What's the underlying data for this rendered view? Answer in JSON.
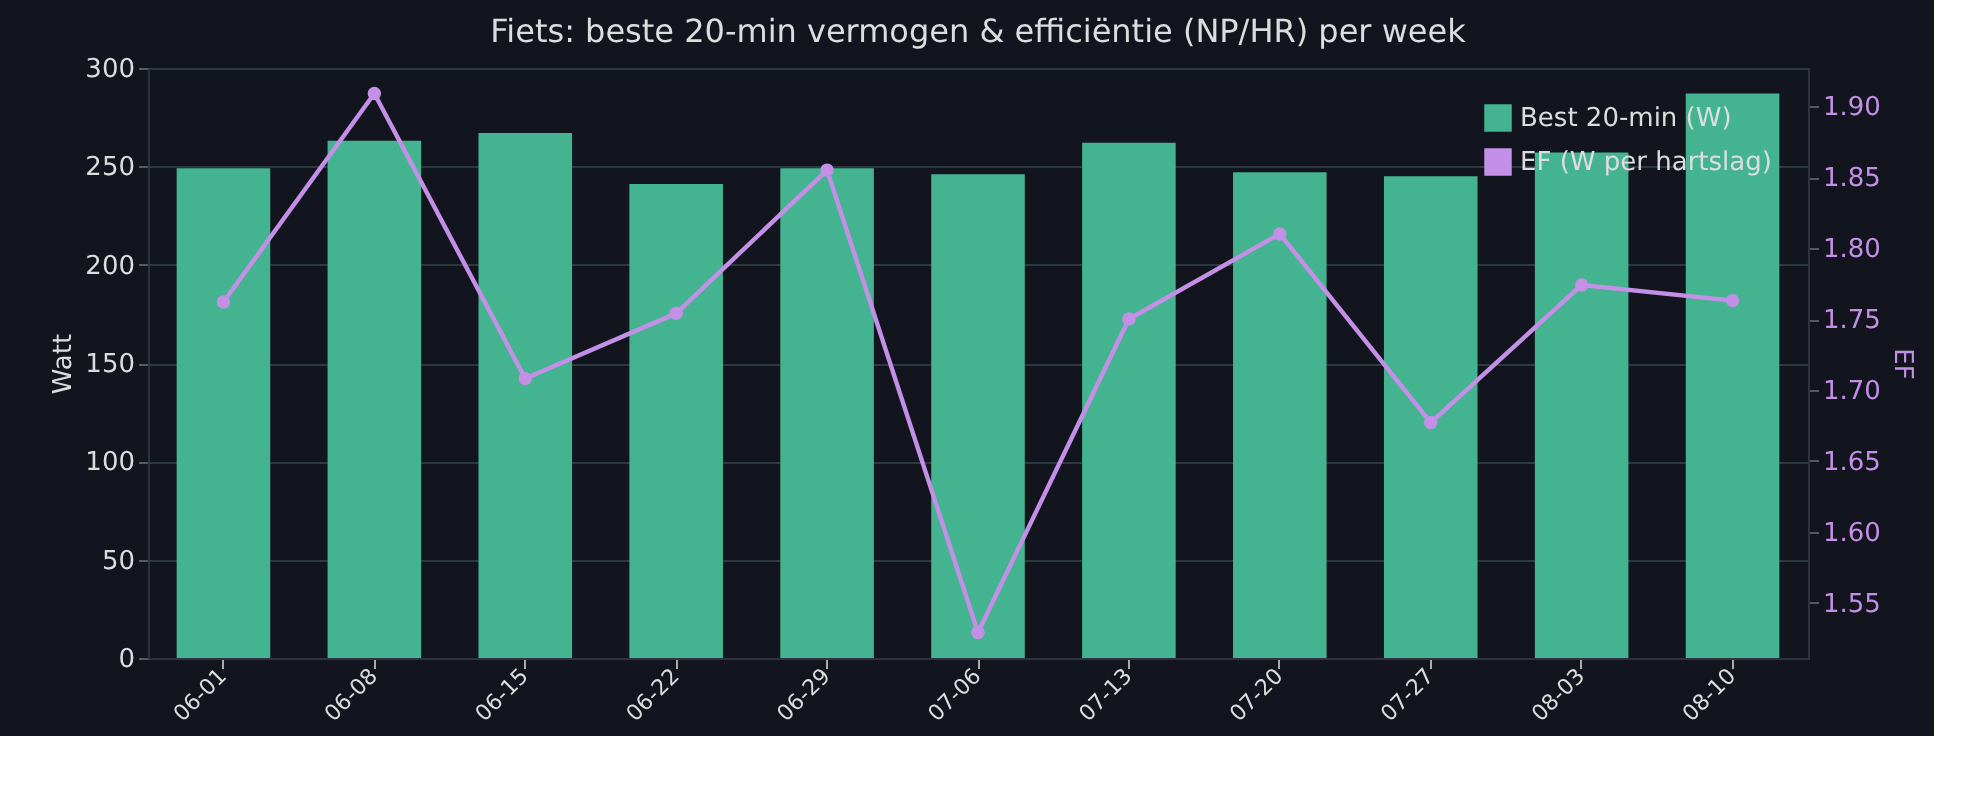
{
  "chart_data": {
    "type": "bar",
    "title": "Fiets: beste 20-min vermogen & efficiëntie (NP/HR) per week",
    "ylabel": "Watt",
    "y2label": "EF",
    "categories": [
      "06-01",
      "06-08",
      "06-15",
      "06-22",
      "06-29",
      "07-06",
      "07-13",
      "07-20",
      "07-27",
      "08-03",
      "08-10"
    ],
    "series": [
      {
        "name": "Best 20-min (W)",
        "color": "#43b48f",
        "values": [
          249,
          263,
          267,
          241,
          249,
          246,
          262,
          247,
          245,
          257,
          287
        ]
      },
      {
        "name": "EF (W per hartslag)",
        "type": "line",
        "axis": "y2",
        "color": "#c48fe6",
        "marker": "circle",
        "values": [
          1.762,
          1.909,
          1.708,
          1.754,
          1.855,
          1.529,
          1.75,
          1.81,
          1.677,
          1.774,
          1.763
        ]
      }
    ],
    "ylim": [
      0,
      300
    ],
    "yticks": [
      0,
      50,
      100,
      150,
      200,
      250,
      300
    ],
    "y2lim": [
      1.511,
      1.927
    ],
    "y2ticks": [
      1.55,
      {
        "value": 1.6,
        "label": "1.60"
      },
      1.65,
      {
        "value": 1.7,
        "label": "1.70"
      },
      1.75,
      {
        "value": 1.8,
        "label": "1.80"
      },
      1.85,
      {
        "value": 1.9,
        "label": "1.90"
      }
    ],
    "grid": "y",
    "legend": "top right"
  }
}
